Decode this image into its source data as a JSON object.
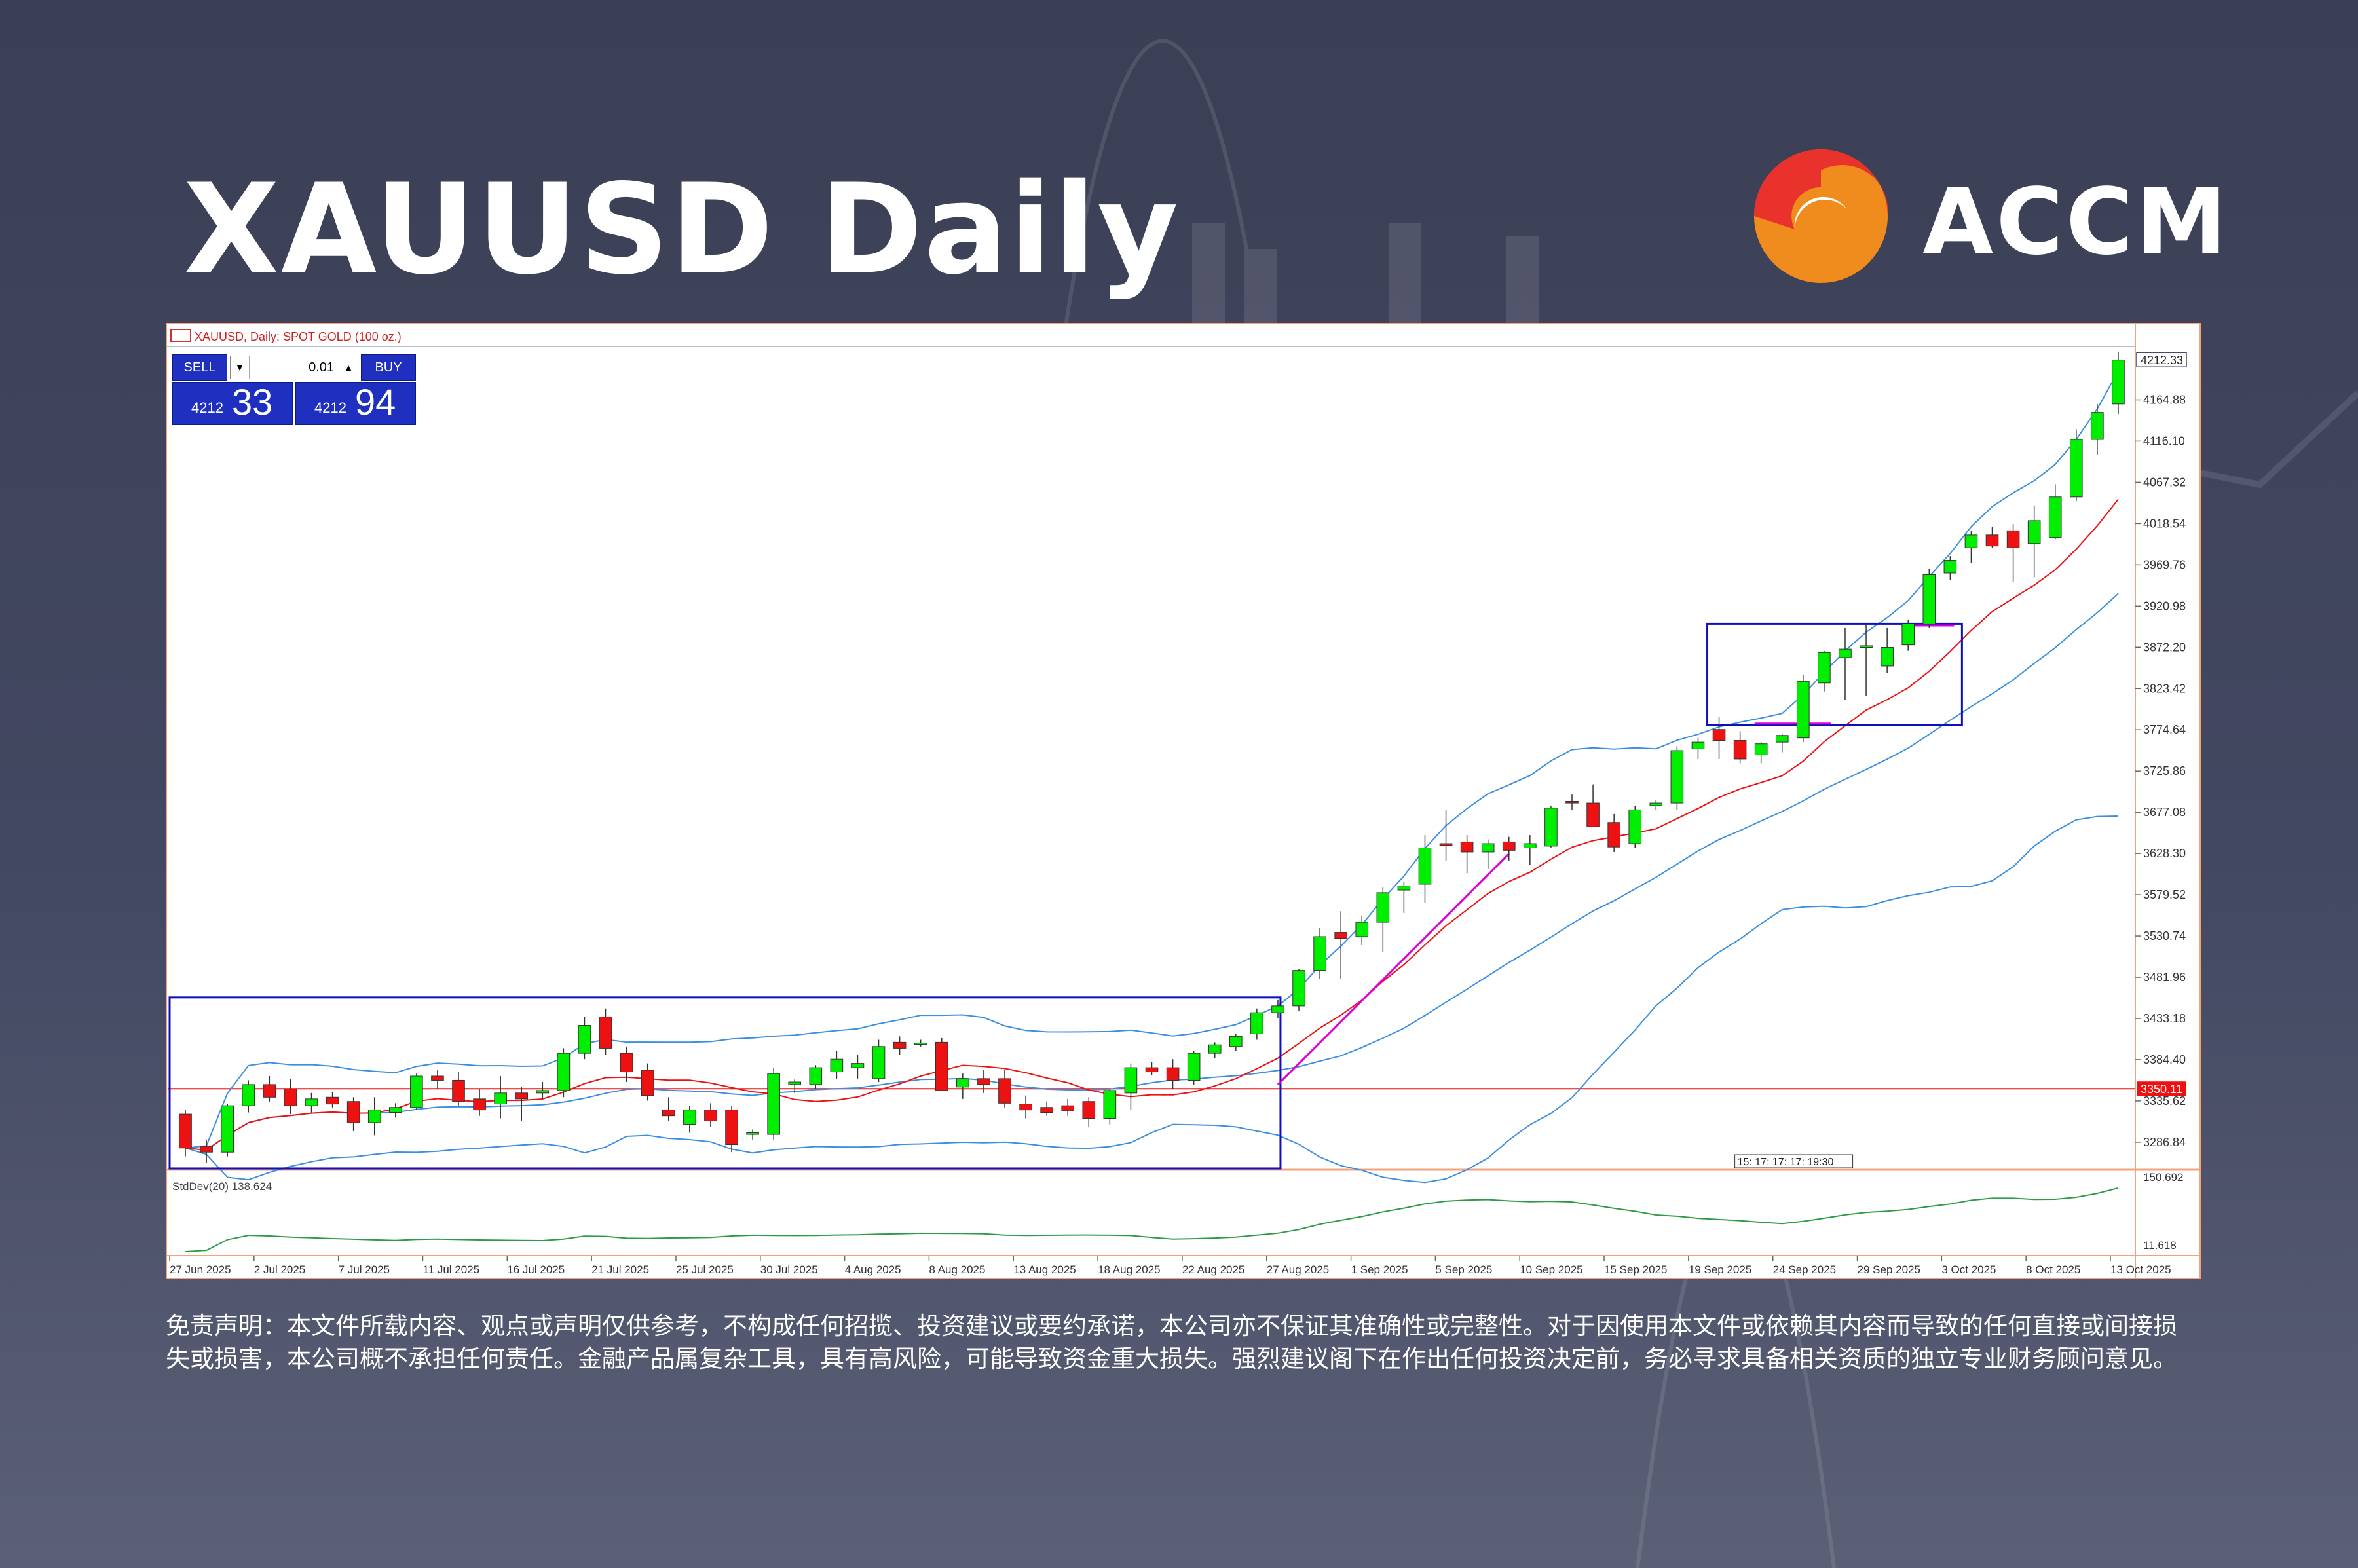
{
  "header": {
    "title": "XAUUSD Daily",
    "brand": "ACCM"
  },
  "colors": {
    "bull": "#00ee00",
    "bear": "#ee1111",
    "bands": "#3b8fe0",
    "ma": "#ee1111",
    "stddev": "#2e9b47",
    "box": "#1010bb",
    "trend": "#dd00dd",
    "logo_red": "#e8322b",
    "logo_orange": "#f08c1e"
  },
  "chart_data": {
    "type": "candlestick",
    "title": "XAUUSD, Daily:  SPOT GOLD (100 oz.)",
    "y_ticks": [
      "4164.88",
      "4116.10",
      "4067.32",
      "4018.54",
      "3969.76",
      "3920.98",
      "3872.20",
      "3823.42",
      "3774.64",
      "3725.86",
      "3677.08",
      "3628.30",
      "3579.52",
      "3530.74",
      "3481.96",
      "3433.18",
      "3384.40",
      "3335.62",
      "3286.84"
    ],
    "y_range": [
      3255,
      4228
    ],
    "x_labels": [
      "27 Jun 2025",
      "2 Jul 2025",
      "7 Jul 2025",
      "11 Jul 2025",
      "16 Jul 2025",
      "21 Jul 2025",
      "25 Jul 2025",
      "30 Jul 2025",
      "4 Aug 2025",
      "8 Aug 2025",
      "13 Aug 2025",
      "18 Aug 2025",
      "22 Aug 2025",
      "27 Aug 2025",
      "1 Sep 2025",
      "5 Sep 2025",
      "10 Sep 2025",
      "15 Sep 2025",
      "19 Sep 2025",
      "24 Sep 2025",
      "29 Sep 2025",
      "3 Oct 2025",
      "8 Oct 2025",
      "13 Oct 2025"
    ],
    "current_price": "4212.33",
    "horizontal_line": "3350.11",
    "time_marker": "15: 17: 17: 17: 19:30",
    "candles": [
      [
        3320,
        3325,
        3270,
        3280
      ],
      [
        3282,
        3290,
        3262,
        3275
      ],
      [
        3275,
        3332,
        3270,
        3330
      ],
      [
        3330,
        3360,
        3322,
        3355
      ],
      [
        3355,
        3365,
        3335,
        3340
      ],
      [
        3350,
        3362,
        3320,
        3330
      ],
      [
        3330,
        3345,
        3322,
        3338
      ],
      [
        3340,
        3346,
        3328,
        3332
      ],
      [
        3335,
        3340,
        3300,
        3310
      ],
      [
        3310,
        3340,
        3295,
        3325
      ],
      [
        3322,
        3333,
        3316,
        3328
      ],
      [
        3328,
        3368,
        3325,
        3365
      ],
      [
        3365,
        3372,
        3350,
        3360
      ],
      [
        3360,
        3370,
        3330,
        3335
      ],
      [
        3338,
        3350,
        3318,
        3325
      ],
      [
        3332,
        3365,
        3315,
        3345
      ],
      [
        3345,
        3352,
        3312,
        3338
      ],
      [
        3345,
        3358,
        3338,
        3348
      ],
      [
        3348,
        3398,
        3340,
        3392
      ],
      [
        3392,
        3435,
        3385,
        3425
      ],
      [
        3435,
        3445,
        3390,
        3398
      ],
      [
        3392,
        3400,
        3358,
        3370
      ],
      [
        3372,
        3380,
        3336,
        3342
      ],
      [
        3325,
        3340,
        3312,
        3318
      ],
      [
        3308,
        3330,
        3298,
        3325
      ],
      [
        3325,
        3333,
        3305,
        3312
      ],
      [
        3325,
        3330,
        3275,
        3284
      ],
      [
        3296,
        3302,
        3290,
        3298
      ],
      [
        3296,
        3375,
        3290,
        3368
      ],
      [
        3355,
        3361,
        3345,
        3358
      ],
      [
        3355,
        3378,
        3350,
        3375
      ],
      [
        3370,
        3395,
        3362,
        3385
      ],
      [
        3375,
        3390,
        3362,
        3380
      ],
      [
        3362,
        3408,
        3358,
        3400
      ],
      [
        3405,
        3412,
        3390,
        3398
      ],
      [
        3403,
        3408,
        3400,
        3404
      ],
      [
        3405,
        3410,
        3355,
        3348
      ],
      [
        3352,
        3368,
        3338,
        3362
      ],
      [
        3362,
        3372,
        3345,
        3355
      ],
      [
        3362,
        3372,
        3328,
        3333
      ],
      [
        3332,
        3342,
        3315,
        3325
      ],
      [
        3328,
        3335,
        3318,
        3322
      ],
      [
        3330,
        3338,
        3318,
        3324
      ],
      [
        3335,
        3340,
        3305,
        3315
      ],
      [
        3315,
        3350,
        3308,
        3348
      ],
      [
        3345,
        3380,
        3325,
        3375
      ],
      [
        3375,
        3382,
        3366,
        3370
      ],
      [
        3375,
        3385,
        3350,
        3360
      ],
      [
        3360,
        3395,
        3355,
        3392
      ],
      [
        3392,
        3405,
        3386,
        3402
      ],
      [
        3400,
        3415,
        3395,
        3412
      ],
      [
        3415,
        3445,
        3408,
        3440
      ],
      [
        3440,
        3455,
        3434,
        3448
      ],
      [
        3448,
        3492,
        3442,
        3490
      ],
      [
        3490,
        3540,
        3480,
        3530
      ],
      [
        3535,
        3560,
        3480,
        3528
      ],
      [
        3530,
        3555,
        3520,
        3547
      ],
      [
        3547,
        3588,
        3512,
        3582
      ],
      [
        3585,
        3595,
        3558,
        3590
      ],
      [
        3592,
        3650,
        3570,
        3635
      ],
      [
        3640,
        3680,
        3620,
        3638
      ],
      [
        3642,
        3650,
        3605,
        3630
      ],
      [
        3630,
        3645,
        3610,
        3640
      ],
      [
        3642,
        3648,
        3620,
        3632
      ],
      [
        3635,
        3650,
        3615,
        3640
      ],
      [
        3637,
        3685,
        3635,
        3682
      ],
      [
        3690,
        3698,
        3680,
        3688
      ],
      [
        3688,
        3710,
        3665,
        3660
      ],
      [
        3665,
        3675,
        3630,
        3636
      ],
      [
        3640,
        3685,
        3635,
        3680
      ],
      [
        3685,
        3692,
        3680,
        3688
      ],
      [
        3688,
        3755,
        3680,
        3750
      ],
      [
        3752,
        3765,
        3740,
        3760
      ],
      [
        3775,
        3790,
        3740,
        3762
      ],
      [
        3762,
        3773,
        3735,
        3740
      ],
      [
        3745,
        3760,
        3735,
        3758
      ],
      [
        3760,
        3770,
        3748,
        3768
      ],
      [
        3765,
        3840,
        3760,
        3832
      ],
      [
        3830,
        3868,
        3820,
        3866
      ],
      [
        3860,
        3895,
        3810,
        3870
      ],
      [
        3872,
        3898,
        3815,
        3874
      ],
      [
        3850,
        3895,
        3842,
        3872
      ],
      [
        3875,
        3905,
        3868,
        3900
      ],
      [
        3900,
        3965,
        3895,
        3958
      ],
      [
        3960,
        3980,
        3952,
        3975
      ],
      [
        3990,
        4010,
        3972,
        4005
      ],
      [
        4005,
        4015,
        3990,
        3992
      ],
      [
        4010,
        4018,
        3950,
        3990
      ],
      [
        3995,
        4040,
        3955,
        4022
      ],
      [
        4002,
        4065,
        4000,
        4050
      ],
      [
        4050,
        4130,
        4045,
        4118
      ],
      [
        4118,
        4160,
        4100,
        4150
      ],
      [
        4160,
        4222,
        4148,
        4212
      ]
    ],
    "stddev_label": "StdDev(20) 138.624",
    "stddev_ticks": [
      "150.692",
      "11.618"
    ]
  },
  "trade_panel": {
    "sell_label": "SELL",
    "buy_label": "BUY",
    "lot": "0.01",
    "sell_small": "4212",
    "sell_big": "33",
    "buy_small": "4212",
    "buy_big": "94"
  },
  "disclaimer": "免责声明：本文件所载内容、观点或声明仅供参考，不构成任何招揽、投资建议或要约承诺，本公司亦不保证其准确性或完整性。对于因使用本文件或依赖其内容而导致的任何直接或间接损失或损害，本公司概不承担任何责任。金融产品属复杂工具，具有高风险，可能导致资金重大损失。强烈建议阁下在作出任何投资决定前，务必寻求具备相关资质的独立专业财务顾问意见。"
}
